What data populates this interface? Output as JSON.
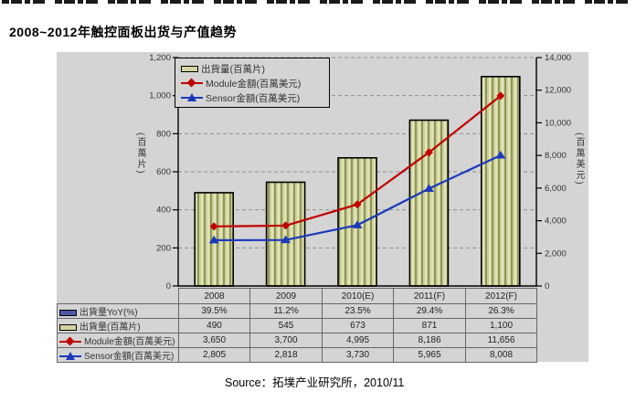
{
  "page": {
    "title": "2008~2012年触控面板出货与产值趋势",
    "source": "Source：拓墣产业研究所，2010/11"
  },
  "chart_data": {
    "type": "bar",
    "title": "2008~2012年触控面板出货与产值趋势",
    "categories": [
      "2008",
      "2009",
      "2010(E)",
      "2011(F)",
      "2012(F)"
    ],
    "series": [
      {
        "name": "出貨量YoY(%)",
        "kind": "table-only",
        "values": [
          39.5,
          11.2,
          23.5,
          29.4,
          26.3
        ],
        "unit": "%"
      },
      {
        "name": "出貨量(百萬片)",
        "kind": "bar",
        "axis": "left",
        "values": [
          490,
          545,
          673,
          871,
          1100
        ]
      },
      {
        "name": "Module金額(百萬美元)",
        "kind": "line",
        "marker": "diamond",
        "axis": "right",
        "color": "#c00000",
        "values": [
          3650,
          3700,
          4995,
          8186,
          11656
        ]
      },
      {
        "name": "Sensor金額(百萬美元)",
        "kind": "line",
        "marker": "triangle",
        "axis": "right",
        "color": "#1c39bb",
        "values": [
          2805,
          2818,
          3730,
          5965,
          8008
        ]
      }
    ],
    "left_axis": {
      "min": 0,
      "max": 1200,
      "step": 200,
      "labels": [
        "0",
        "200",
        "400",
        "600",
        "800",
        "1,000",
        "1,200"
      ],
      "title_vertical": "(百萬片)"
    },
    "right_axis": {
      "min": 0,
      "max": 14000,
      "step": 2000,
      "labels": [
        "0",
        "2,000",
        "4,000",
        "6,000",
        "8,000",
        "10,000",
        "12,000",
        "14,000"
      ],
      "title_vertical": "(百萬美元)"
    },
    "grid": "horizontal-dashed",
    "legend_position": "top-left-inside",
    "colors": {
      "canvas_bg": "#d4d4d4",
      "bar_fill": "#cdd09b",
      "bar_stripe_dark": "#8f9659",
      "bar_stripe_light": "#e3e4b8",
      "bar_swatch": "#d6d3a2",
      "yoy_swatch": "#5156a6",
      "module_line": "#c00000",
      "sensor_line": "#1c39bb"
    }
  },
  "legend": {
    "items": [
      {
        "label": "出貨量(百萬片)"
      },
      {
        "label": "Module金額(百萬美元)"
      },
      {
        "label": "Sensor金額(百萬美元)"
      }
    ]
  },
  "table": {
    "columns": [
      "2008",
      "2009",
      "2010(E)",
      "2011(F)",
      "2012(F)"
    ],
    "rows": [
      {
        "label": "出貨量YoY(%)",
        "values": [
          "39.5%",
          "11.2%",
          "23.5%",
          "29.4%",
          "26.3%"
        ]
      },
      {
        "label": "出貨量(百萬片)",
        "values": [
          "490",
          "545",
          "673",
          "871",
          "1,100"
        ]
      },
      {
        "label": "Module金額(百萬美元)",
        "values": [
          "3,650",
          "3,700",
          "4,995",
          "8,186",
          "11,656"
        ]
      },
      {
        "label": "Sensor金額(百萬美元)",
        "values": [
          "2,805",
          "2,818",
          "3,730",
          "5,965",
          "8,008"
        ]
      }
    ]
  }
}
